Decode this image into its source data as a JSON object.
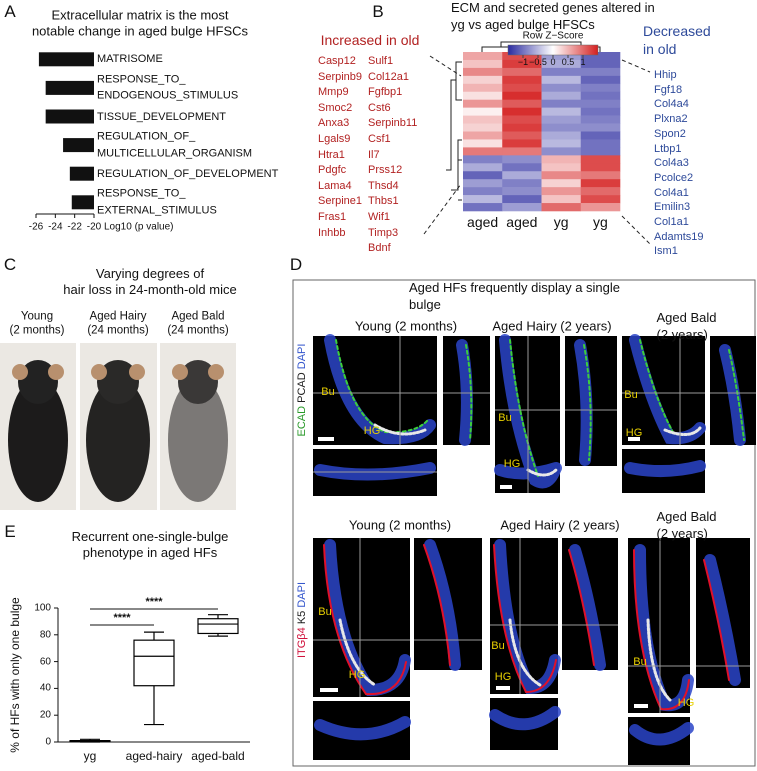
{
  "panel_labels": [
    "A",
    "B",
    "C",
    "D",
    "E"
  ],
  "chart_data": [
    {
      "type": "bar",
      "orientation": "horizontal",
      "title": "Extracellular matrix is the most\nnotable change in aged bulge HFSCs",
      "categories": [
        "MATRISOME",
        "RESPONSE_TO_\nENDOGENOUS_STIMULUS",
        "TISSUE_DEVELOPMENT",
        "REGULATION_OF_\nMULTICELLULAR_ORGANISM",
        "REGULATION_OF_DEVELOPMENT",
        "RESPONSE_TO_\nEXTERNAL_STIMULUS"
      ],
      "values": [
        -25.7,
        -25.0,
        -25.0,
        -23.2,
        -22.5,
        -22.3
      ],
      "color": "#111111",
      "x_label": "Log10 (p value)",
      "xlim": [
        -26,
        -20
      ],
      "xticks": [
        -26,
        -24,
        -22,
        -20
      ]
    },
    {
      "type": "heatmap",
      "title": "ECM and secreted genes altered in yg vs aged bulge HFSCs",
      "colorbar_label": "Row Z−Score",
      "zlim": [
        -1.5,
        1.5
      ],
      "colorbar_ticks": [
        {
          "value": -1,
          "label": "−1"
        },
        {
          "value": -0.5,
          "label": "−0.5"
        },
        0,
        0.5,
        1
      ],
      "colors": [
        "#2c2ca0",
        "#ffffff",
        "#d41f1f"
      ],
      "columns": [
        "aged",
        "aged",
        "yg",
        "yg"
      ],
      "values": [
        [
          0.6,
          1.2,
          -0.7,
          -1.1
        ],
        [
          0.4,
          1.3,
          -0.6,
          -1.1
        ],
        [
          0.8,
          1.0,
          -0.9,
          -0.9
        ],
        [
          0.3,
          1.3,
          -0.5,
          -1.1
        ],
        [
          0.5,
          1.2,
          -0.8,
          -0.9
        ],
        [
          0.2,
          1.4,
          -0.6,
          -1.0
        ],
        [
          0.7,
          1.1,
          -0.9,
          -0.9
        ],
        [
          0.1,
          1.4,
          -0.5,
          -1.0
        ],
        [
          0.4,
          1.2,
          -0.7,
          -0.9
        ],
        [
          0.3,
          1.3,
          -0.8,
          -0.8
        ],
        [
          0.6,
          1.1,
          -0.6,
          -1.1
        ],
        [
          0.2,
          1.3,
          -0.5,
          -1.0
        ],
        [
          0.9,
          0.9,
          -0.8,
          -1.0
        ],
        [
          -0.9,
          -0.8,
          0.5,
          1.2
        ],
        [
          -0.6,
          -1.0,
          0.4,
          1.2
        ],
        [
          -1.1,
          -0.6,
          0.8,
          0.9
        ],
        [
          -0.7,
          -0.9,
          0.3,
          1.3
        ],
        [
          -0.9,
          -0.8,
          0.7,
          1.0
        ],
        [
          -0.5,
          -1.1,
          0.4,
          1.2
        ],
        [
          -1.0,
          -0.7,
          1.0,
          0.7
        ]
      ],
      "increased_label": "Increased in old",
      "increased_color": "#b22222",
      "increased_genes": [
        [
          "Casp12",
          "Serpinb9",
          "Mmp9",
          "Smoc2",
          "Anxa3",
          "Lgals9",
          "Htra1",
          "Pdgfc",
          "Lama4",
          "Serpine1",
          "Fras1",
          "Inhbb"
        ],
        [
          "Sulf1",
          "Col12a1",
          "Fgfbp1",
          "Cst6",
          "Serpinb11",
          "Csf1",
          "Il7",
          "Prss12",
          "Thsd4",
          "Thbs1",
          "Wif1",
          "Timp3",
          "Bdnf"
        ]
      ],
      "decreased_label": "Decreased in old",
      "decreased_color": "#2e4a9a",
      "decreased_genes": [
        "Hhip",
        "Fgf18",
        "Col4a4",
        "Plxna2",
        "Spon2",
        "Ltbp1",
        "Col4a3",
        "Pcolce2",
        "Col4a1",
        "Emilin3",
        "Col1a1",
        "Adamts19",
        "Ism1"
      ]
    },
    {
      "type": "box",
      "title": "Recurrent one-single-bulge\nphenotype in aged HFs",
      "y_label": "% of HFs with only one bulge",
      "categories": [
        "yg",
        "aged-hairy",
        "aged-bald"
      ],
      "min": [
        0,
        13,
        79
      ],
      "q1": [
        1,
        42,
        81
      ],
      "median": [
        1,
        64,
        88
      ],
      "q3": [
        1,
        76,
        92
      ],
      "max": [
        2,
        82,
        95
      ],
      "color": "#000000",
      "ylim": [
        0,
        100
      ],
      "yticks": [
        0,
        20,
        40,
        60,
        80,
        100
      ],
      "annotations": [
        "****",
        "****"
      ]
    }
  ],
  "panel_c": {
    "title": "Varying degrees of\nhair loss in 24-month-old mice",
    "mice": [
      "Young\n(2 months)",
      "Aged Hairy\n(24 months)",
      "Aged Bald\n(24 months)"
    ]
  },
  "panel_d": {
    "title": "Aged HFs frequently display a single bulge",
    "rows": [
      {
        "headers": [
          "Young (2 months)",
          "Aged Hairy (2 years)",
          "Aged Bald (2 years)"
        ],
        "stain": [
          {
            "text": "ECAD",
            "color": "#2a9a2a"
          },
          {
            "text": "PCAD",
            "color": "#222222"
          },
          {
            "text": "DAPI",
            "color": "#3355cc"
          }
        ]
      },
      {
        "headers": [
          "Young (2 months)",
          "Aged Hairy (2 years)",
          "Aged Bald (2 years)"
        ],
        "stain": [
          {
            "text": "ITGβ4",
            "color": "#d0103a"
          },
          {
            "text": "K5",
            "color": "#222222"
          },
          {
            "text": "DAPI",
            "color": "#3355cc"
          }
        ]
      }
    ],
    "region_labels": [
      "Bu",
      "HG"
    ]
  }
}
